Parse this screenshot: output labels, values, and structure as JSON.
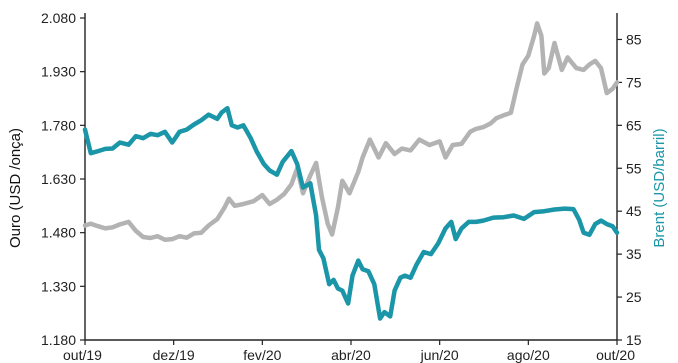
{
  "chart_data": {
    "type": "line",
    "title": "",
    "x_ticks": [
      "out/19",
      "dez/19",
      "fev/20",
      "abr/20",
      "jun/20",
      "ago/20",
      "out/20"
    ],
    "xlim": [
      "2019-10-01",
      "2020-10-01"
    ],
    "left_axis": {
      "label": "Ouro (USD /onça)",
      "ylim": [
        1180,
        2080
      ],
      "ticks": [
        "1.180",
        "1.330",
        "1.480",
        "1.630",
        "1.780",
        "1.930",
        "2.080"
      ]
    },
    "right_axis": {
      "label": "Brent (USD/barril)",
      "ylim": [
        15,
        90
      ],
      "ticks": [
        "15",
        "25",
        "35",
        "45",
        "55",
        "65",
        "75",
        "85"
      ]
    },
    "grid": false,
    "series": [
      {
        "axis": "left",
        "color": "#b3b3b3",
        "points": [
          [
            "2019-10-01",
            1500
          ],
          [
            "2019-10-05",
            1505
          ],
          [
            "2019-10-10",
            1498
          ],
          [
            "2019-10-15",
            1492
          ],
          [
            "2019-10-20",
            1495
          ],
          [
            "2019-10-25",
            1503
          ],
          [
            "2019-10-31",
            1510
          ],
          [
            "2019-11-05",
            1485
          ],
          [
            "2019-11-10",
            1468
          ],
          [
            "2019-11-15",
            1465
          ],
          [
            "2019-11-20",
            1470
          ],
          [
            "2019-11-25",
            1460
          ],
          [
            "2019-11-30",
            1462
          ],
          [
            "2019-12-05",
            1470
          ],
          [
            "2019-12-10",
            1466
          ],
          [
            "2019-12-15",
            1478
          ],
          [
            "2019-12-20",
            1480
          ],
          [
            "2019-12-25",
            1500
          ],
          [
            "2019-12-31",
            1518
          ],
          [
            "2020-01-05",
            1550
          ],
          [
            "2020-01-08",
            1575
          ],
          [
            "2020-01-12",
            1555
          ],
          [
            "2020-01-18",
            1560
          ],
          [
            "2020-01-25",
            1568
          ],
          [
            "2020-01-31",
            1585
          ],
          [
            "2020-02-05",
            1560
          ],
          [
            "2020-02-10",
            1572
          ],
          [
            "2020-02-15",
            1588
          ],
          [
            "2020-02-20",
            1615
          ],
          [
            "2020-02-24",
            1660
          ],
          [
            "2020-02-28",
            1590
          ],
          [
            "2020-03-04",
            1640
          ],
          [
            "2020-03-08",
            1675
          ],
          [
            "2020-03-12",
            1580
          ],
          [
            "2020-03-16",
            1505
          ],
          [
            "2020-03-19",
            1475
          ],
          [
            "2020-03-23",
            1550
          ],
          [
            "2020-03-26",
            1625
          ],
          [
            "2020-03-31",
            1590
          ],
          [
            "2020-04-06",
            1650
          ],
          [
            "2020-04-09",
            1690
          ],
          [
            "2020-04-14",
            1740
          ],
          [
            "2020-04-20",
            1690
          ],
          [
            "2020-04-25",
            1730
          ],
          [
            "2020-05-01",
            1700
          ],
          [
            "2020-05-06",
            1715
          ],
          [
            "2020-05-12",
            1710
          ],
          [
            "2020-05-18",
            1740
          ],
          [
            "2020-05-25",
            1725
          ],
          [
            "2020-06-01",
            1735
          ],
          [
            "2020-06-05",
            1690
          ],
          [
            "2020-06-10",
            1725
          ],
          [
            "2020-06-16",
            1728
          ],
          [
            "2020-06-22",
            1762
          ],
          [
            "2020-06-26",
            1770
          ],
          [
            "2020-07-01",
            1775
          ],
          [
            "2020-07-06",
            1785
          ],
          [
            "2020-07-10",
            1800
          ],
          [
            "2020-07-15",
            1808
          ],
          [
            "2020-07-20",
            1815
          ],
          [
            "2020-07-24",
            1885
          ],
          [
            "2020-07-28",
            1950
          ],
          [
            "2020-08-01",
            1975
          ],
          [
            "2020-08-05",
            2030
          ],
          [
            "2020-08-07",
            2065
          ],
          [
            "2020-08-10",
            2030
          ],
          [
            "2020-08-12",
            1925
          ],
          [
            "2020-08-15",
            1940
          ],
          [
            "2020-08-19",
            2010
          ],
          [
            "2020-08-24",
            1935
          ],
          [
            "2020-08-28",
            1970
          ],
          [
            "2020-09-03",
            1940
          ],
          [
            "2020-09-08",
            1935
          ],
          [
            "2020-09-12",
            1950
          ],
          [
            "2020-09-16",
            1960
          ],
          [
            "2020-09-20",
            1940
          ],
          [
            "2020-09-24",
            1870
          ],
          [
            "2020-09-28",
            1882
          ],
          [
            "2020-10-01",
            1900
          ]
        ]
      },
      {
        "axis": "right",
        "color": "#1a96a8",
        "points": [
          [
            "2019-10-01",
            64
          ],
          [
            "2019-10-05",
            58.5
          ],
          [
            "2019-10-10",
            59
          ],
          [
            "2019-10-15",
            59.5
          ],
          [
            "2019-10-20",
            59.6
          ],
          [
            "2019-10-25",
            61
          ],
          [
            "2019-10-31",
            60.5
          ],
          [
            "2019-11-05",
            62.5
          ],
          [
            "2019-11-10",
            62
          ],
          [
            "2019-11-15",
            63
          ],
          [
            "2019-11-20",
            62.7
          ],
          [
            "2019-11-25",
            63.5
          ],
          [
            "2019-11-30",
            61
          ],
          [
            "2019-12-05",
            63.5
          ],
          [
            "2019-12-10",
            64
          ],
          [
            "2019-12-15",
            65.2
          ],
          [
            "2019-12-20",
            66.2
          ],
          [
            "2019-12-25",
            67.5
          ],
          [
            "2019-12-31",
            66.5
          ],
          [
            "2020-01-03",
            68
          ],
          [
            "2020-01-07",
            69
          ],
          [
            "2020-01-10",
            65
          ],
          [
            "2020-01-14",
            64.5
          ],
          [
            "2020-01-18",
            65
          ],
          [
            "2020-01-23",
            62
          ],
          [
            "2020-01-27",
            59
          ],
          [
            "2020-02-01",
            56
          ],
          [
            "2020-02-05",
            54.5
          ],
          [
            "2020-02-10",
            53.5
          ],
          [
            "2020-02-14",
            56.5
          ],
          [
            "2020-02-20",
            59
          ],
          [
            "2020-02-24",
            56
          ],
          [
            "2020-02-28",
            50.5
          ],
          [
            "2020-03-04",
            51.5
          ],
          [
            "2020-03-08",
            44
          ],
          [
            "2020-03-10",
            36
          ],
          [
            "2020-03-13",
            34
          ],
          [
            "2020-03-17",
            28
          ],
          [
            "2020-03-20",
            29
          ],
          [
            "2020-03-23",
            27
          ],
          [
            "2020-03-26",
            26.5
          ],
          [
            "2020-03-30",
            23.5
          ],
          [
            "2020-04-02",
            30
          ],
          [
            "2020-04-06",
            33.5
          ],
          [
            "2020-04-09",
            31.5
          ],
          [
            "2020-04-13",
            31
          ],
          [
            "2020-04-17",
            28
          ],
          [
            "2020-04-21",
            20
          ],
          [
            "2020-04-24",
            21.5
          ],
          [
            "2020-04-28",
            20.5
          ],
          [
            "2020-05-01",
            26.5
          ],
          [
            "2020-05-05",
            29.5
          ],
          [
            "2020-05-08",
            30
          ],
          [
            "2020-05-12",
            29.5
          ],
          [
            "2020-05-16",
            32.5
          ],
          [
            "2020-05-21",
            35.5
          ],
          [
            "2020-05-26",
            35
          ],
          [
            "2020-05-31",
            37.5
          ],
          [
            "2020-06-05",
            41
          ],
          [
            "2020-06-09",
            42.5
          ],
          [
            "2020-06-12",
            38.5
          ],
          [
            "2020-06-16",
            41
          ],
          [
            "2020-06-21",
            42.5
          ],
          [
            "2020-06-26",
            42.5
          ],
          [
            "2020-07-01",
            42.8
          ],
          [
            "2020-07-08",
            43.5
          ],
          [
            "2020-07-15",
            43.6
          ],
          [
            "2020-07-22",
            44
          ],
          [
            "2020-07-29",
            43.2
          ],
          [
            "2020-08-05",
            44.8
          ],
          [
            "2020-08-12",
            45
          ],
          [
            "2020-08-19",
            45.4
          ],
          [
            "2020-08-26",
            45.6
          ],
          [
            "2020-09-01",
            45.5
          ],
          [
            "2020-09-05",
            43
          ],
          [
            "2020-09-08",
            40
          ],
          [
            "2020-09-12",
            39.5
          ],
          [
            "2020-09-16",
            42
          ],
          [
            "2020-09-20",
            42.8
          ],
          [
            "2020-09-24",
            42
          ],
          [
            "2020-09-28",
            41.5
          ],
          [
            "2020-10-01",
            40
          ]
        ]
      }
    ]
  }
}
